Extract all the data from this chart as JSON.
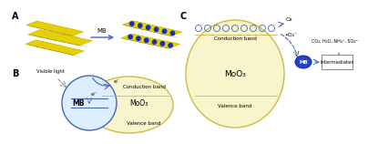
{
  "bg_color": "#ffffff",
  "label_A": "A",
  "label_B": "B",
  "label_C": "C",
  "mb_arrow_text": "MB",
  "band_label_conduction": "Conduction band",
  "band_label_valence": "Valence band",
  "moo3_label": "MoO₃",
  "mb_label": "MB",
  "visible_light_label": "Visible light",
  "electron_label": "e⁻",
  "o2_label": "O₂",
  "superoxide_label": "•O₂⁻",
  "intermediates_label": "Intermediates",
  "products_label": "CO₂, H₂O, NH₄⁺, SO₄²⁻",
  "yellow_belt": "#c8b400",
  "yellow_fill": "#e8d000",
  "blue_dots": "#1133bb",
  "blue_arrow": "#aabbee",
  "blue_circle_edge": "#4466bb",
  "blue_circle_fill": "#ddeeff",
  "yellow_ellipse_edge": "#ccbb44",
  "yellow_ellipse_fill": "#f8f4cc",
  "mb_blue_fill": "#2244cc",
  "gray_text": "#555555"
}
